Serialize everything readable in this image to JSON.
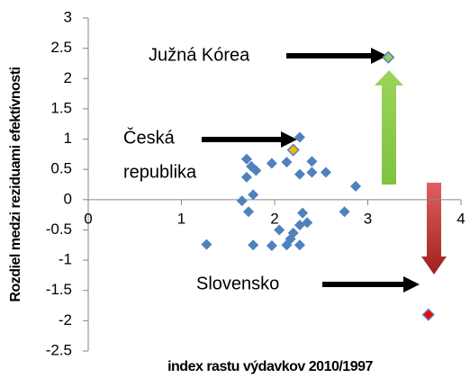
{
  "chart_data": {
    "type": "scatter",
    "x_label": "index rastu výdavkov 2010/1997",
    "y_label": "Rozdiel medzi reziduami efektívnosti",
    "xlim": [
      0,
      4
    ],
    "xticks": [
      0,
      1,
      2,
      3,
      4
    ],
    "ylim": [
      -2.5,
      3
    ],
    "yticks": [
      3,
      2.5,
      2,
      1.5,
      1,
      0.5,
      0,
      -0.5,
      -1,
      -1.5,
      -2,
      -2.5
    ],
    "series": [
      {
        "color": "#4f81bd",
        "x": [
          1.27,
          1.65,
          1.7,
          1.7,
          1.75,
          1.8,
          1.77,
          1.77,
          1.72,
          1.97,
          1.97,
          2.05,
          2.13,
          2.13,
          2.17,
          2.27,
          2.27,
          2.3,
          2.27,
          2.27,
          2.4,
          2.4,
          2.55,
          2.75,
          2.87,
          2.2,
          2.35
        ],
        "values": [
          -0.74,
          -0.02,
          0.67,
          0.37,
          0.55,
          0.48,
          0.08,
          -0.75,
          -0.2,
          0.6,
          -0.76,
          -0.5,
          0.62,
          -0.75,
          -0.65,
          1.03,
          0.42,
          -0.22,
          -0.42,
          -0.75,
          0.45,
          0.63,
          0.45,
          -0.2,
          0.22,
          -0.55,
          -0.38
        ]
      },
      {
        "color": "#f5b800",
        "x": [
          2.2
        ],
        "values": [
          0.82
        ]
      },
      {
        "color": "#9bcf5f",
        "x": [
          3.22
        ],
        "values": [
          2.35
        ]
      },
      {
        "color": "#ff0000",
        "x": [
          3.65
        ],
        "values": [
          -1.9
        ]
      }
    ],
    "annotations": [
      {
        "lines": [
          "Južná Kórea"
        ]
      },
      {
        "lines": [
          "Česká",
          "republika"
        ]
      },
      {
        "lines": [
          "Slovensko"
        ]
      }
    ]
  }
}
